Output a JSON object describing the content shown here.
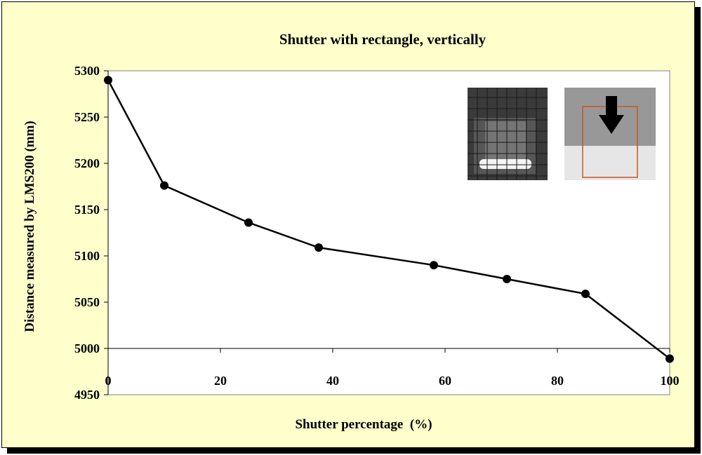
{
  "chart_data": {
    "type": "line",
    "title": "Shutter with rectangle, vertically",
    "xlabel": "Shutter percentage  (%)",
    "ylabel": "Distance measured by LMS200 (mm)",
    "xlim": [
      0,
      100
    ],
    "ylim": [
      4950,
      5300
    ],
    "x_ticks": [
      0,
      20,
      40,
      60,
      80,
      100
    ],
    "y_ticks": [
      4950,
      5000,
      5050,
      5100,
      5150,
      5200,
      5250,
      5300
    ],
    "grid": false,
    "legend": "none",
    "series": [
      {
        "x": [
          0,
          10,
          25,
          37.5,
          58,
          71,
          85,
          100
        ],
        "y": [
          5290,
          5176,
          5136,
          5109,
          5090,
          5075,
          5059,
          4989
        ]
      }
    ],
    "line_color": "#000000",
    "plot_background": "#ffffff",
    "figure_background": "#ffffcc",
    "insets": [
      {
        "name": "camera-image-inset",
        "description_icon": "grid-photo"
      },
      {
        "name": "shutter-diagram-inset",
        "description_icon": "down-arrow-rectangle",
        "rectangle_color": "#cc5522"
      }
    ]
  }
}
